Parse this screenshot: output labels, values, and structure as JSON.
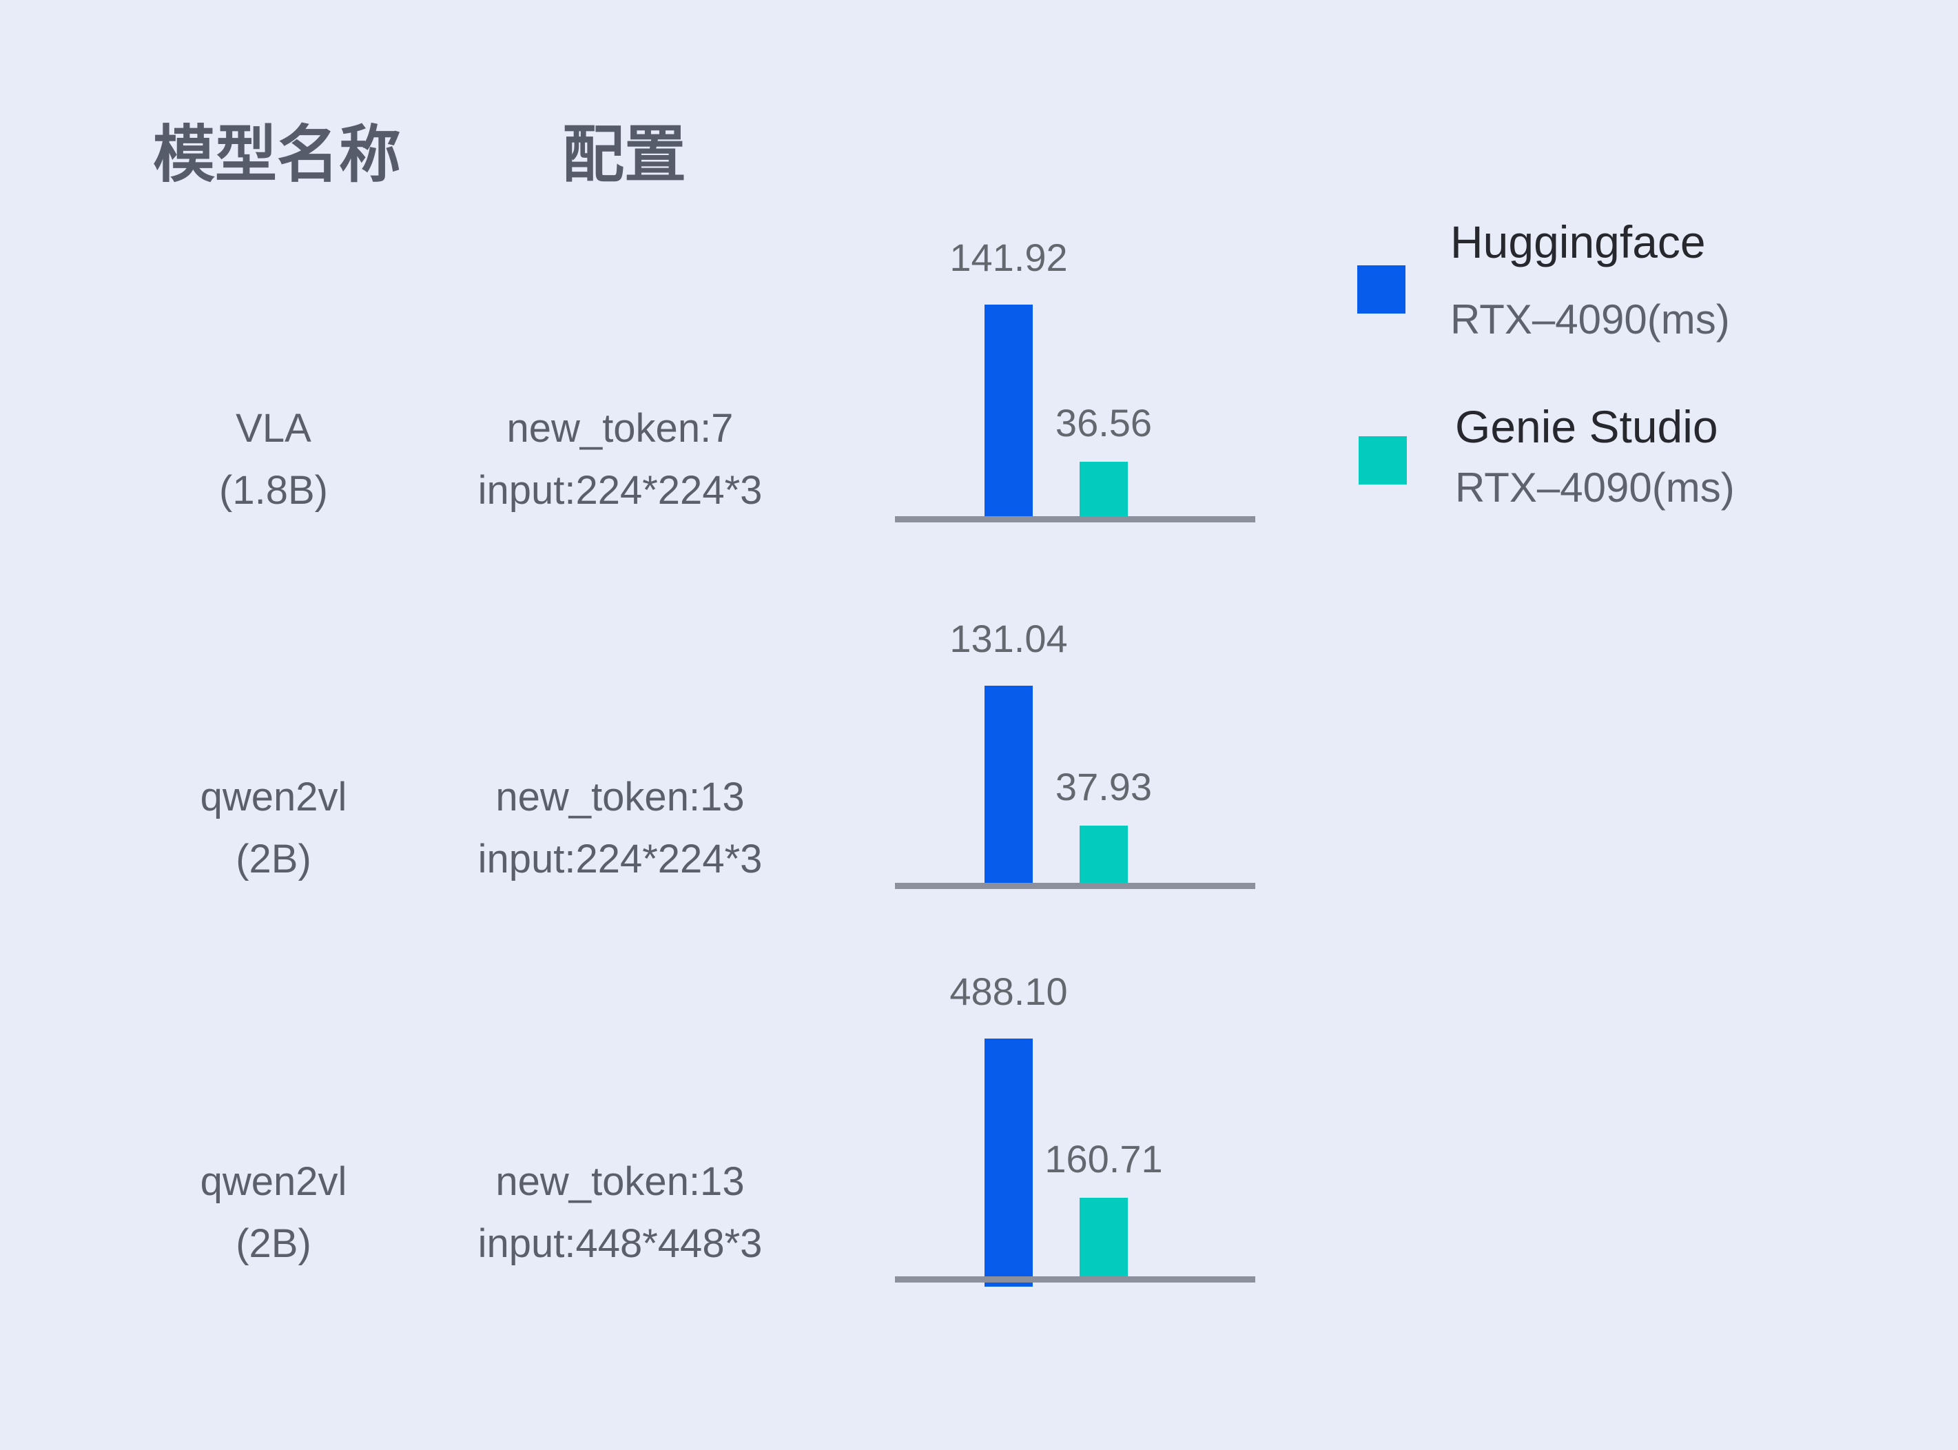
{
  "page": {
    "background_color": "#E8ECF9"
  },
  "table": {
    "headers": [
      {
        "label": "模型名称"
      },
      {
        "label": "配置"
      }
    ],
    "rows": [
      {
        "model_name": "VLA",
        "model_size": "(1.8B)",
        "config_line1": "new_token:7",
        "config_line2": "input:224*224*3",
        "hf_label": "141.92",
        "genie_label": "36.56"
      },
      {
        "model_name": "qwen2vl",
        "model_size": "(2B)",
        "config_line1": "new_token:13",
        "config_line2": "input:224*224*3",
        "hf_label": "131.04",
        "genie_label": "37.93"
      },
      {
        "model_name": "qwen2vl",
        "model_size": "(2B)",
        "config_line1": "new_token:13",
        "config_line2": "input:448*448*3",
        "hf_label": "488.10",
        "genie_label": "160.71"
      }
    ]
  },
  "legend": [
    {
      "name": "Huggingface",
      "detail": "RTX–4090(ms)",
      "color": "#075CEB"
    },
    {
      "name": "Genie Studio",
      "detail": "RTX–4090(ms)",
      "color": "#03CBBE"
    }
  ],
  "chart_data": {
    "type": "bar",
    "categories": [
      "VLA (1.8B) — new_token:7, input:224*224*3",
      "qwen2vl (2B) — new_token:13, input:224*224*3",
      "qwen2vl (2B) — new_token:13, input:448*448*3"
    ],
    "series": [
      {
        "name": "Huggingface RTX–4090(ms)",
        "color": "#075CEB",
        "values": [
          141.92,
          131.04,
          488.1
        ]
      },
      {
        "name": "Genie Studio RTX–4090(ms)",
        "color": "#03CBBE",
        "values": [
          36.56,
          37.93,
          160.71
        ]
      }
    ],
    "value_labels": [
      [
        "141.92",
        "36.56"
      ],
      [
        "131.04",
        "37.93"
      ],
      [
        "488.10",
        "160.71"
      ]
    ],
    "title": "",
    "xlabel": "",
    "ylabel": "",
    "unit": "ms",
    "layout": {
      "orientation": "vertical",
      "grid": false,
      "axis_line": true,
      "legend_position": "top-right",
      "per_row_scaling": true
    }
  }
}
